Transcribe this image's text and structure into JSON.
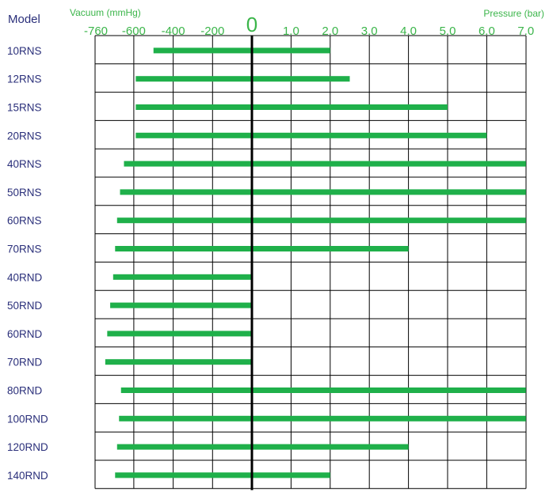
{
  "chart_data": {
    "type": "bar",
    "model_header": "Model",
    "vacuum_axis_label": "Vacuum (mmHg)",
    "pressure_axis_label": "Pressure (bar)",
    "zero_label": "0",
    "vacuum_ticks": [
      "-760",
      "-600",
      "-400",
      "-200"
    ],
    "pressure_ticks": [
      "1.0",
      "2.0",
      "3.0",
      "4.0",
      "5.0",
      "6.0",
      "7.0"
    ],
    "vacuum_range_mmHg": [
      -760,
      0
    ],
    "pressure_range_bar": [
      0,
      7.0
    ],
    "grid": true,
    "colors": {
      "bar": "#1fb04a",
      "axis_label": "#3bb54a",
      "model_label": "#2a2f7a",
      "grid": "#000000"
    },
    "series": [
      {
        "model": "10RNS",
        "vacuum_mmHg": -500,
        "pressure_bar": 2.0
      },
      {
        "model": "12RNS",
        "vacuum_mmHg": -590,
        "pressure_bar": 2.5
      },
      {
        "model": "15RNS",
        "vacuum_mmHg": -590,
        "pressure_bar": 5.0
      },
      {
        "model": "20RNS",
        "vacuum_mmHg": -590,
        "pressure_bar": 6.0
      },
      {
        "model": "40RNS",
        "vacuum_mmHg": -650,
        "pressure_bar": 7.0
      },
      {
        "model": "50RNS",
        "vacuum_mmHg": -670,
        "pressure_bar": 7.0
      },
      {
        "model": "60RNS",
        "vacuum_mmHg": -685,
        "pressure_bar": 7.0
      },
      {
        "model": "70RNS",
        "vacuum_mmHg": -695,
        "pressure_bar": 4.0
      },
      {
        "model": "40RND",
        "vacuum_mmHg": -705,
        "pressure_bar": 0
      },
      {
        "model": "50RND",
        "vacuum_mmHg": -720,
        "pressure_bar": 0
      },
      {
        "model": "60RND",
        "vacuum_mmHg": -735,
        "pressure_bar": 0
      },
      {
        "model": "70RND",
        "vacuum_mmHg": -745,
        "pressure_bar": 0
      },
      {
        "model": "80RND",
        "vacuum_mmHg": -665,
        "pressure_bar": 7.0
      },
      {
        "model": "100RND",
        "vacuum_mmHg": -675,
        "pressure_bar": 7.0
      },
      {
        "model": "120RND",
        "vacuum_mmHg": -685,
        "pressure_bar": 4.0
      },
      {
        "model": "140RND",
        "vacuum_mmHg": -695,
        "pressure_bar": 2.0
      }
    ]
  }
}
